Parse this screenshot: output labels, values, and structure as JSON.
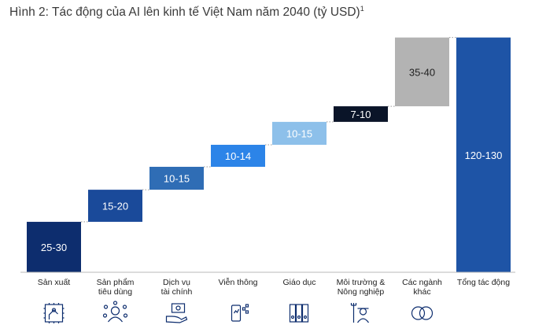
{
  "title": {
    "text": "Hình 2: Tác động của AI lên kinh tế Việt Nam năm 2040 (tỷ USD)",
    "footnote_marker": "1"
  },
  "chart_data": {
    "type": "bar",
    "subtype": "waterfall",
    "title": "Hình 2: Tác động của AI lên kinh tế Việt Nam năm 2040 (tỷ USD)",
    "xlabel": "",
    "ylabel": "",
    "ylim": [
      0,
      130
    ],
    "grid": false,
    "legend": "none",
    "categories": [
      [
        "Sản xuất"
      ],
      [
        "Sản phẩm",
        "tiêu dùng"
      ],
      [
        "Dịch vụ",
        "tài chính"
      ],
      [
        "Viễn thông"
      ],
      [
        "Giáo dục"
      ],
      [
        "Môi trường &",
        "Nông nghiệp"
      ],
      [
        "Các ngành",
        "khác"
      ],
      [
        "Tổng tác động"
      ]
    ],
    "bars": [
      {
        "label": "25-30",
        "start": 0,
        "end": 27.5,
        "color": "#0d2d6e",
        "icon": "factory-robot-arm-icon"
      },
      {
        "label": "15-20",
        "start": 27.5,
        "end": 45,
        "color": "#1a4a9a",
        "icon": "person-network-icon"
      },
      {
        "label": "10-15",
        "start": 45,
        "end": 57.5,
        "color": "#2f6db5",
        "icon": "hand-money-icon"
      },
      {
        "label": "10-14",
        "start": 57.5,
        "end": 69.5,
        "color": "#2c84e8",
        "icon": "phone-signal-icon"
      },
      {
        "label": "10-15",
        "start": 69.5,
        "end": 82,
        "color": "#8dc0ea",
        "icon": "binders-icon"
      },
      {
        "label": "7-10",
        "start": 82,
        "end": 90.5,
        "color": "#0a1428",
        "icon": "farmer-pitchfork-icon"
      },
      {
        "label": "35-40",
        "start": 90.5,
        "end": 128,
        "color": "#b3b3b3",
        "icon": "overlapping-circles-icon"
      },
      {
        "label": "120-130",
        "start": 0,
        "end": 128,
        "color": "#1e54a6",
        "icon": ""
      }
    ]
  }
}
